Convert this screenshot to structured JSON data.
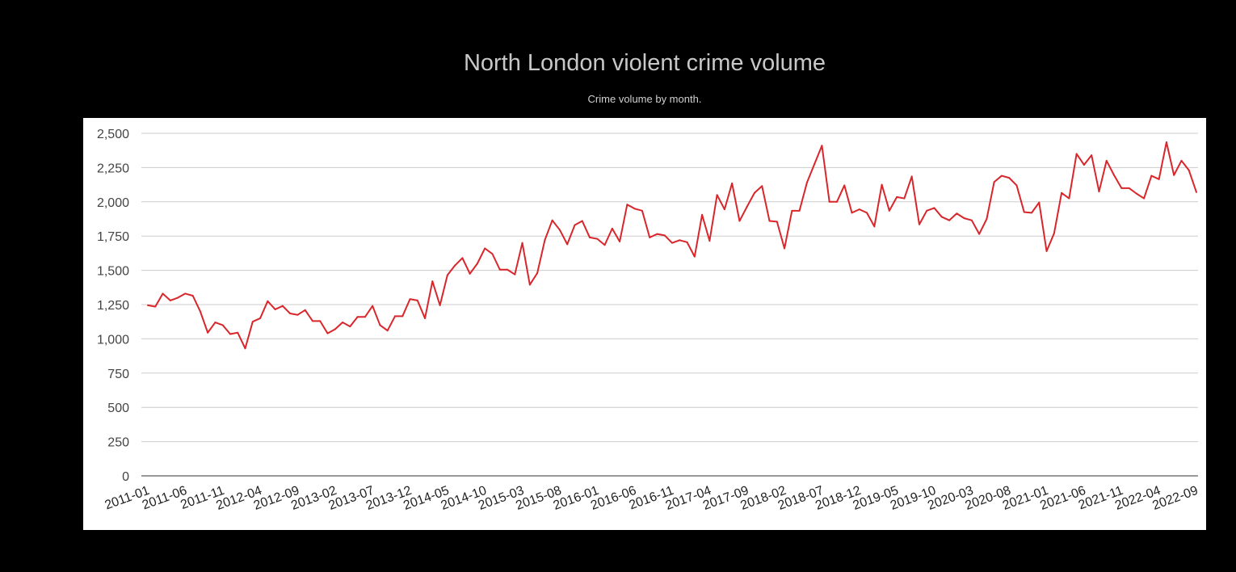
{
  "title": "North London violent crime volume",
  "subtitle": "Crime volume by month.",
  "colors": {
    "background": "#000000",
    "plot": "#ffffff",
    "line": "#d9262b",
    "grid": "#cccccc"
  },
  "chart_data": {
    "type": "line",
    "title": "North London violent crime volume",
    "subtitle": "Crime volume by month.",
    "xlabel": "",
    "ylabel": "",
    "ylim": [
      0,
      2500
    ],
    "yticks": [
      0,
      250,
      500,
      750,
      1000,
      1250,
      1500,
      1750,
      2000,
      2250,
      2500
    ],
    "ytick_labels": [
      "0",
      "250",
      "500",
      "750",
      "1,000",
      "1,250",
      "1,500",
      "1,750",
      "2,000",
      "2,250",
      "2,500"
    ],
    "xtick_labels": [
      "2011-01",
      "2011-06",
      "2011-11",
      "2012-04",
      "2012-09",
      "2013-02",
      "2013-07",
      "2013-12",
      "2014-05",
      "2014-10",
      "2015-03",
      "2015-08",
      "2016-01",
      "2016-06",
      "2016-11",
      "2017-04",
      "2017-09",
      "2018-02",
      "2018-07",
      "2018-12",
      "2019-05",
      "2019-10",
      "2020-03",
      "2020-08",
      "2021-01",
      "2021-06",
      "2021-11",
      "2022-04",
      "2022-09"
    ],
    "grid": true,
    "legend": "none",
    "series": [
      {
        "start": "2011-01",
        "end": "2022-09",
        "values": [
          1245,
          1235,
          1330,
          1280,
          1300,
          1330,
          1315,
          1200,
          1045,
          1120,
          1100,
          1035,
          1045,
          930,
          1125,
          1150,
          1275,
          1215,
          1240,
          1185,
          1175,
          1210,
          1130,
          1130,
          1040,
          1070,
          1120,
          1090,
          1160,
          1160,
          1240,
          1100,
          1060,
          1165,
          1165,
          1290,
          1280,
          1150,
          1420,
          1245,
          1465,
          1535,
          1590,
          1475,
          1550,
          1660,
          1620,
          1505,
          1505,
          1470,
          1700,
          1395,
          1480,
          1720,
          1865,
          1795,
          1690,
          1830,
          1860,
          1740,
          1730,
          1685,
          1805,
          1710,
          1980,
          1950,
          1935,
          1740,
          1765,
          1755,
          1700,
          1720,
          1705,
          1600,
          1905,
          1715,
          2050,
          1945,
          2135,
          1860,
          1965,
          2065,
          2115,
          1860,
          1855,
          1660,
          1935,
          1935,
          2140,
          2275,
          2410,
          2000,
          2000,
          2120,
          1920,
          1945,
          1920,
          1820,
          2125,
          1935,
          2035,
          2025,
          2185,
          1835,
          1935,
          1955,
          1890,
          1865,
          1915,
          1880,
          1865,
          1765,
          1875,
          2145,
          2190,
          2175,
          2120,
          1925,
          1920,
          1995,
          1640,
          1770,
          2065,
          2025,
          2350,
          2270,
          2340,
          2075,
          2300,
          2195,
          2100,
          2100,
          2060,
          2025,
          2190,
          2165,
          2435,
          2195,
          2300,
          2230,
          2070
        ]
      }
    ]
  }
}
